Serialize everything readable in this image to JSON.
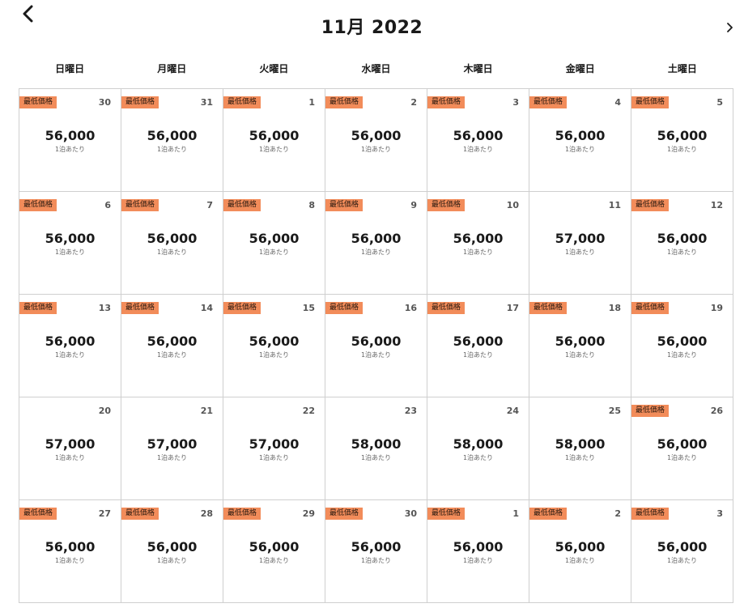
{
  "header": {
    "title": "11月 2022",
    "prev_icon": "chevron-left-icon",
    "next_icon": "chevron-right-icon"
  },
  "weekdays": [
    "日曜日",
    "月曜日",
    "火曜日",
    "水曜日",
    "木曜日",
    "金曜日",
    "土曜日"
  ],
  "badge_label": "最低価格",
  "per_night_label": "1泊あたり",
  "colors": {
    "badge_bg": "#f28c5a",
    "grid_border": "#cfcfcf"
  },
  "cells": [
    {
      "day": "30",
      "price": "56,000",
      "lowest": true
    },
    {
      "day": "31",
      "price": "56,000",
      "lowest": true
    },
    {
      "day": "1",
      "price": "56,000",
      "lowest": true
    },
    {
      "day": "2",
      "price": "56,000",
      "lowest": true
    },
    {
      "day": "3",
      "price": "56,000",
      "lowest": true
    },
    {
      "day": "4",
      "price": "56,000",
      "lowest": true
    },
    {
      "day": "5",
      "price": "56,000",
      "lowest": true
    },
    {
      "day": "6",
      "price": "56,000",
      "lowest": true
    },
    {
      "day": "7",
      "price": "56,000",
      "lowest": true
    },
    {
      "day": "8",
      "price": "56,000",
      "lowest": true
    },
    {
      "day": "9",
      "price": "56,000",
      "lowest": true
    },
    {
      "day": "10",
      "price": "56,000",
      "lowest": true
    },
    {
      "day": "11",
      "price": "57,000",
      "lowest": false
    },
    {
      "day": "12",
      "price": "56,000",
      "lowest": true
    },
    {
      "day": "13",
      "price": "56,000",
      "lowest": true
    },
    {
      "day": "14",
      "price": "56,000",
      "lowest": true
    },
    {
      "day": "15",
      "price": "56,000",
      "lowest": true
    },
    {
      "day": "16",
      "price": "56,000",
      "lowest": true
    },
    {
      "day": "17",
      "price": "56,000",
      "lowest": true
    },
    {
      "day": "18",
      "price": "56,000",
      "lowest": true
    },
    {
      "day": "19",
      "price": "56,000",
      "lowest": true
    },
    {
      "day": "20",
      "price": "57,000",
      "lowest": false
    },
    {
      "day": "21",
      "price": "57,000",
      "lowest": false
    },
    {
      "day": "22",
      "price": "57,000",
      "lowest": false
    },
    {
      "day": "23",
      "price": "58,000",
      "lowest": false
    },
    {
      "day": "24",
      "price": "58,000",
      "lowest": false
    },
    {
      "day": "25",
      "price": "58,000",
      "lowest": false
    },
    {
      "day": "26",
      "price": "56,000",
      "lowest": true
    },
    {
      "day": "27",
      "price": "56,000",
      "lowest": true
    },
    {
      "day": "28",
      "price": "56,000",
      "lowest": true
    },
    {
      "day": "29",
      "price": "56,000",
      "lowest": true
    },
    {
      "day": "30",
      "price": "56,000",
      "lowest": true
    },
    {
      "day": "1",
      "price": "56,000",
      "lowest": true
    },
    {
      "day": "2",
      "price": "56,000",
      "lowest": true
    },
    {
      "day": "3",
      "price": "56,000",
      "lowest": true
    }
  ]
}
